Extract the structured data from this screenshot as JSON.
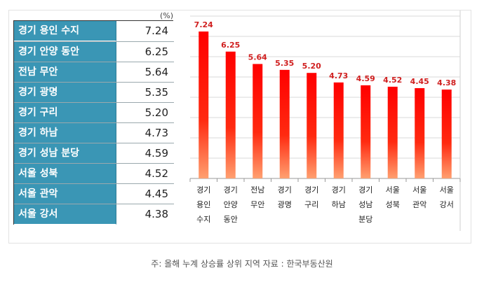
{
  "table": {
    "unit": "(%)",
    "rows": [
      {
        "region": "경기 용인 수지",
        "value": "7.24"
      },
      {
        "region": "경기 안양 동안",
        "value": "6.25"
      },
      {
        "region": "전남 무안",
        "value": "5.64"
      },
      {
        "region": "경기 광명",
        "value": "5.35"
      },
      {
        "region": "경기 구리",
        "value": "5.20"
      },
      {
        "region": "경기 하남",
        "value": "4.73"
      },
      {
        "region": "경기 성남 분당",
        "value": "4.59"
      },
      {
        "region": "서울 성북",
        "value": "4.52"
      },
      {
        "region": "서울 관악",
        "value": "4.45"
      },
      {
        "region": "서울 강서",
        "value": "4.38"
      }
    ]
  },
  "chart_data": {
    "type": "bar",
    "categories": [
      [
        "경기",
        "용인",
        "수지"
      ],
      [
        "경기",
        "안양",
        "동안"
      ],
      [
        "전남",
        "무안"
      ],
      [
        "경기",
        "광명"
      ],
      [
        "경기",
        "구리"
      ],
      [
        "경기",
        "하남"
      ],
      [
        "경기",
        "성남",
        "분당"
      ],
      [
        "서울",
        "성북"
      ],
      [
        "서울",
        "관악"
      ],
      [
        "서울",
        "강서"
      ]
    ],
    "values": [
      7.24,
      6.25,
      5.64,
      5.35,
      5.2,
      4.73,
      4.59,
      4.52,
      4.45,
      4.38
    ],
    "data_labels": [
      "7.24",
      "6.25",
      "5.64",
      "5.35",
      "5.20",
      "4.73",
      "4.59",
      "4.52",
      "4.45",
      "4.38"
    ],
    "ylim": [
      0,
      8
    ],
    "grid": true,
    "bar_color_top": "#ff0000",
    "bar_color_bottom": "#ffa070",
    "label_color": "#d02020"
  },
  "note": "주: 올해 누계 상승률 상위 지역 자료 : 한국부동산원"
}
